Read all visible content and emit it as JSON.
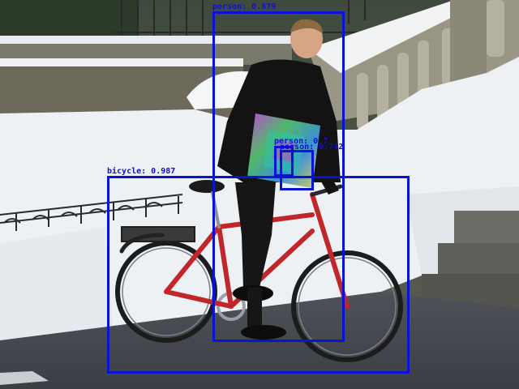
{
  "image": {
    "description_tag": "photo-object-detection-overlay",
    "box_color": "#0a12d8",
    "label_color": "#1010d0"
  },
  "detections": [
    {
      "label": "person: 0.879"
    },
    {
      "label": "bicycle: 0.987"
    },
    {
      "label": "person: 0.7"
    },
    {
      "label": "person: 0.742"
    }
  ]
}
